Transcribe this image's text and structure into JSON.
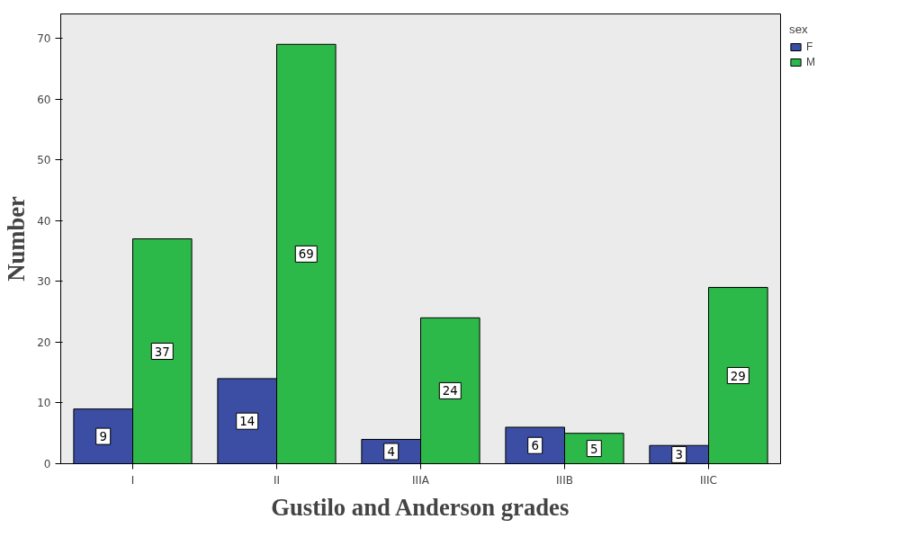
{
  "chart_data": {
    "type": "bar",
    "xlabel": "Gustilo and Anderson grades",
    "ylabel": "Number",
    "legend_title": "sex",
    "categories": [
      "I",
      "II",
      "IIIA",
      "IIIB",
      "IIIC"
    ],
    "series": [
      {
        "name": "F",
        "color": "#3b4ea3",
        "values": [
          9,
          14,
          4,
          6,
          3
        ]
      },
      {
        "name": "M",
        "color": "#2db84a",
        "values": [
          37,
          69,
          24,
          5,
          29
        ]
      }
    ],
    "ylim": [
      0,
      74
    ],
    "yticks": [
      0,
      10,
      20,
      30,
      40,
      50,
      60,
      70
    ],
    "grid": false,
    "legend": "top right",
    "data_labels": true
  }
}
